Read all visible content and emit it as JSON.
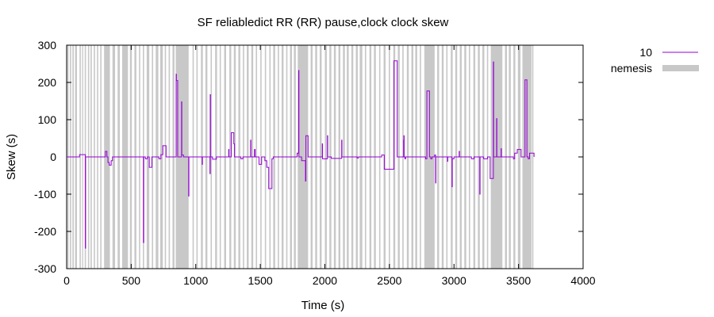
{
  "chart_data": {
    "type": "line",
    "title": "SF reliabledict RR (RR) pause,clock clock skew",
    "xlabel": "Time (s)",
    "ylabel": "Skew (s)",
    "xlim": [
      0,
      4000
    ],
    "ylim": [
      -300,
      300
    ],
    "xticks": [
      0,
      500,
      1000,
      1500,
      2000,
      2500,
      3000,
      3500,
      4000
    ],
    "yticks": [
      -300,
      -200,
      -100,
      0,
      100,
      200,
      300
    ],
    "grid": false,
    "legend_position": "top-right-outside",
    "legend": [
      {
        "label": "10",
        "color": "#9400d3",
        "kind": "line"
      },
      {
        "label": "nemesis",
        "color": "#c8c8c8",
        "kind": "band"
      }
    ],
    "series": [
      {
        "name": "10",
        "color": "#9400d3",
        "step": true,
        "points": [
          [
            0,
            0
          ],
          [
            100,
            0
          ],
          [
            100,
            6
          ],
          [
            145,
            6
          ],
          [
            145,
            -245
          ],
          [
            147,
            -245
          ],
          [
            147,
            0
          ],
          [
            300,
            0
          ],
          [
            300,
            15
          ],
          [
            312,
            15
          ],
          [
            312,
            0
          ],
          [
            320,
            0
          ],
          [
            320,
            -15
          ],
          [
            330,
            -15
          ],
          [
            330,
            -22
          ],
          [
            345,
            -22
          ],
          [
            345,
            -10
          ],
          [
            355,
            -10
          ],
          [
            355,
            0
          ],
          [
            595,
            0
          ],
          [
            595,
            -230
          ],
          [
            597,
            -230
          ],
          [
            597,
            0
          ],
          [
            610,
            0
          ],
          [
            610,
            -5
          ],
          [
            625,
            -5
          ],
          [
            625,
            0
          ],
          [
            640,
            0
          ],
          [
            640,
            -28
          ],
          [
            660,
            -28
          ],
          [
            660,
            0
          ],
          [
            715,
            0
          ],
          [
            715,
            -5
          ],
          [
            730,
            -5
          ],
          [
            730,
            6
          ],
          [
            745,
            6
          ],
          [
            745,
            30
          ],
          [
            770,
            30
          ],
          [
            770,
            0
          ],
          [
            848,
            0
          ],
          [
            848,
            222
          ],
          [
            850,
            222
          ],
          [
            850,
            205
          ],
          [
            860,
            205
          ],
          [
            860,
            0
          ],
          [
            890,
            0
          ],
          [
            890,
            148
          ],
          [
            892,
            148
          ],
          [
            892,
            5
          ],
          [
            905,
            5
          ],
          [
            905,
            0
          ],
          [
            945,
            0
          ],
          [
            945,
            -105
          ],
          [
            947,
            -105
          ],
          [
            947,
            0
          ],
          [
            1050,
            0
          ],
          [
            1050,
            -20
          ],
          [
            1052,
            -20
          ],
          [
            1052,
            0
          ],
          [
            1110,
            0
          ],
          [
            1110,
            -45
          ],
          [
            1112,
            -45
          ],
          [
            1112,
            167
          ],
          [
            1114,
            167
          ],
          [
            1114,
            0
          ],
          [
            1130,
            0
          ],
          [
            1130,
            -6
          ],
          [
            1160,
            -6
          ],
          [
            1160,
            0
          ],
          [
            1255,
            0
          ],
          [
            1255,
            20
          ],
          [
            1257,
            20
          ],
          [
            1257,
            0
          ],
          [
            1275,
            0
          ],
          [
            1275,
            65
          ],
          [
            1295,
            65
          ],
          [
            1295,
            35
          ],
          [
            1300,
            35
          ],
          [
            1300,
            0
          ],
          [
            1350,
            0
          ],
          [
            1350,
            -5
          ],
          [
            1365,
            -5
          ],
          [
            1365,
            0
          ],
          [
            1425,
            0
          ],
          [
            1425,
            45
          ],
          [
            1427,
            45
          ],
          [
            1427,
            0
          ],
          [
            1455,
            0
          ],
          [
            1455,
            20
          ],
          [
            1460,
            20
          ],
          [
            1460,
            0
          ],
          [
            1490,
            0
          ],
          [
            1490,
            -20
          ],
          [
            1510,
            -20
          ],
          [
            1510,
            0
          ],
          [
            1535,
            0
          ],
          [
            1535,
            -10
          ],
          [
            1550,
            -10
          ],
          [
            1550,
            -28
          ],
          [
            1565,
            -28
          ],
          [
            1565,
            -85
          ],
          [
            1590,
            -85
          ],
          [
            1590,
            -5
          ],
          [
            1600,
            -5
          ],
          [
            1600,
            0
          ],
          [
            1785,
            0
          ],
          [
            1785,
            10
          ],
          [
            1797,
            10
          ],
          [
            1797,
            232
          ],
          [
            1799,
            232
          ],
          [
            1799,
            0
          ],
          [
            1820,
            0
          ],
          [
            1820,
            -10
          ],
          [
            1850,
            -10
          ],
          [
            1850,
            -65
          ],
          [
            1853,
            -65
          ],
          [
            1853,
            57
          ],
          [
            1870,
            57
          ],
          [
            1870,
            0
          ],
          [
            1980,
            0
          ],
          [
            1980,
            35
          ],
          [
            1982,
            35
          ],
          [
            1982,
            -5
          ],
          [
            2020,
            -5
          ],
          [
            2020,
            57
          ],
          [
            2022,
            57
          ],
          [
            2022,
            0
          ],
          [
            2050,
            0
          ],
          [
            2050,
            -4
          ],
          [
            2130,
            -4
          ],
          [
            2130,
            45
          ],
          [
            2132,
            45
          ],
          [
            2132,
            0
          ],
          [
            2250,
            0
          ],
          [
            2250,
            -3
          ],
          [
            2260,
            -3
          ],
          [
            2260,
            0
          ],
          [
            2440,
            0
          ],
          [
            2440,
            5
          ],
          [
            2460,
            5
          ],
          [
            2460,
            -33
          ],
          [
            2535,
            -33
          ],
          [
            2535,
            258
          ],
          [
            2560,
            258
          ],
          [
            2560,
            0
          ],
          [
            2610,
            0
          ],
          [
            2610,
            45
          ],
          [
            2612,
            45
          ],
          [
            2612,
            57
          ],
          [
            2614,
            57
          ],
          [
            2614,
            0
          ],
          [
            2620,
            0
          ],
          [
            2620,
            -5
          ],
          [
            2625,
            -5
          ],
          [
            2625,
            0
          ],
          [
            2780,
            0
          ],
          [
            2780,
            -5
          ],
          [
            2790,
            -5
          ],
          [
            2790,
            177
          ],
          [
            2810,
            177
          ],
          [
            2810,
            0
          ],
          [
            2820,
            0
          ],
          [
            2820,
            -5
          ],
          [
            2830,
            -5
          ],
          [
            2830,
            0
          ],
          [
            2850,
            0
          ],
          [
            2850,
            5
          ],
          [
            2858,
            5
          ],
          [
            2858,
            -70
          ],
          [
            2860,
            -70
          ],
          [
            2860,
            0
          ],
          [
            2950,
            0
          ],
          [
            2950,
            -12
          ],
          [
            2952,
            -12
          ],
          [
            2952,
            0
          ],
          [
            2985,
            0
          ],
          [
            2985,
            -80
          ],
          [
            2987,
            -80
          ],
          [
            2987,
            -5
          ],
          [
            3000,
            -5
          ],
          [
            3000,
            0
          ],
          [
            3040,
            0
          ],
          [
            3040,
            15
          ],
          [
            3042,
            15
          ],
          [
            3042,
            0
          ],
          [
            3135,
            0
          ],
          [
            3135,
            -5
          ],
          [
            3155,
            -5
          ],
          [
            3155,
            0
          ],
          [
            3200,
            0
          ],
          [
            3200,
            -100
          ],
          [
            3202,
            -100
          ],
          [
            3202,
            0
          ],
          [
            3230,
            0
          ],
          [
            3230,
            -5
          ],
          [
            3260,
            -5
          ],
          [
            3260,
            0
          ],
          [
            3280,
            0
          ],
          [
            3280,
            -58
          ],
          [
            3305,
            -58
          ],
          [
            3305,
            255
          ],
          [
            3307,
            255
          ],
          [
            3307,
            0
          ],
          [
            3330,
            0
          ],
          [
            3330,
            103
          ],
          [
            3332,
            103
          ],
          [
            3332,
            0
          ],
          [
            3365,
            0
          ],
          [
            3365,
            22
          ],
          [
            3367,
            22
          ],
          [
            3367,
            0
          ],
          [
            3460,
            0
          ],
          [
            3460,
            -5
          ],
          [
            3470,
            -5
          ],
          [
            3470,
            10
          ],
          [
            3490,
            10
          ],
          [
            3490,
            20
          ],
          [
            3520,
            20
          ],
          [
            3520,
            0
          ],
          [
            3550,
            0
          ],
          [
            3550,
            207
          ],
          [
            3565,
            207
          ],
          [
            3565,
            0
          ],
          [
            3575,
            0
          ],
          [
            3575,
            -5
          ],
          [
            3585,
            -5
          ],
          [
            3585,
            10
          ],
          [
            3620,
            10
          ],
          [
            3620,
            0
          ]
        ]
      }
    ],
    "nemesis_intervals": [
      [
        5,
        15
      ],
      [
        25,
        35
      ],
      [
        45,
        55
      ],
      [
        65,
        80
      ],
      [
        100,
        110
      ],
      [
        120,
        128
      ],
      [
        140,
        150
      ],
      [
        165,
        175
      ],
      [
        185,
        195
      ],
      [
        210,
        220
      ],
      [
        235,
        245
      ],
      [
        260,
        270
      ],
      [
        290,
        335
      ],
      [
        355,
        375
      ],
      [
        395,
        412
      ],
      [
        430,
        475
      ],
      [
        490,
        505
      ],
      [
        525,
        540
      ],
      [
        560,
        570
      ],
      [
        590,
        600
      ],
      [
        620,
        640
      ],
      [
        660,
        670
      ],
      [
        690,
        710
      ],
      [
        725,
        745
      ],
      [
        760,
        770
      ],
      [
        790,
        800
      ],
      [
        820,
        835
      ],
      [
        845,
        945
      ],
      [
        975,
        985
      ],
      [
        1005,
        1015
      ],
      [
        1040,
        1055
      ],
      [
        1075,
        1090
      ],
      [
        1115,
        1125
      ],
      [
        1150,
        1165
      ],
      [
        1185,
        1195
      ],
      [
        1220,
        1235
      ],
      [
        1260,
        1275
      ],
      [
        1295,
        1310
      ],
      [
        1330,
        1345
      ],
      [
        1365,
        1375
      ],
      [
        1395,
        1410
      ],
      [
        1430,
        1445
      ],
      [
        1465,
        1475
      ],
      [
        1500,
        1510
      ],
      [
        1535,
        1545
      ],
      [
        1570,
        1580
      ],
      [
        1600,
        1615
      ],
      [
        1635,
        1645
      ],
      [
        1665,
        1680
      ],
      [
        1700,
        1710
      ],
      [
        1730,
        1745
      ],
      [
        1760,
        1775
      ],
      [
        1790,
        1870
      ],
      [
        1890,
        1905
      ],
      [
        1925,
        1940
      ],
      [
        1960,
        1975
      ],
      [
        2000,
        2015
      ],
      [
        2035,
        2050
      ],
      [
        2070,
        2085
      ],
      [
        2105,
        2120
      ],
      [
        2140,
        2155
      ],
      [
        2170,
        2185
      ],
      [
        2205,
        2220
      ],
      [
        2240,
        2255
      ],
      [
        2270,
        2290
      ],
      [
        2310,
        2320
      ],
      [
        2345,
        2360
      ],
      [
        2380,
        2395
      ],
      [
        2420,
        2430
      ],
      [
        2455,
        2470
      ],
      [
        2495,
        2505
      ],
      [
        2530,
        2545
      ],
      [
        2565,
        2580
      ],
      [
        2600,
        2610
      ],
      [
        2635,
        2650
      ],
      [
        2670,
        2685
      ],
      [
        2700,
        2715
      ],
      [
        2735,
        2745
      ],
      [
        2770,
        2850
      ],
      [
        2870,
        2885
      ],
      [
        2905,
        2920
      ],
      [
        2940,
        2950
      ],
      [
        2975,
        2990
      ],
      [
        3010,
        3025
      ],
      [
        3045,
        3060
      ],
      [
        3080,
        3095
      ],
      [
        3115,
        3125
      ],
      [
        3150,
        3165
      ],
      [
        3185,
        3200
      ],
      [
        3220,
        3235
      ],
      [
        3255,
        3265
      ],
      [
        3285,
        3375
      ],
      [
        3395,
        3410
      ],
      [
        3425,
        3440
      ],
      [
        3460,
        3475
      ],
      [
        3495,
        3515
      ],
      [
        3530,
        3600
      ],
      [
        3605,
        3615
      ]
    ]
  }
}
